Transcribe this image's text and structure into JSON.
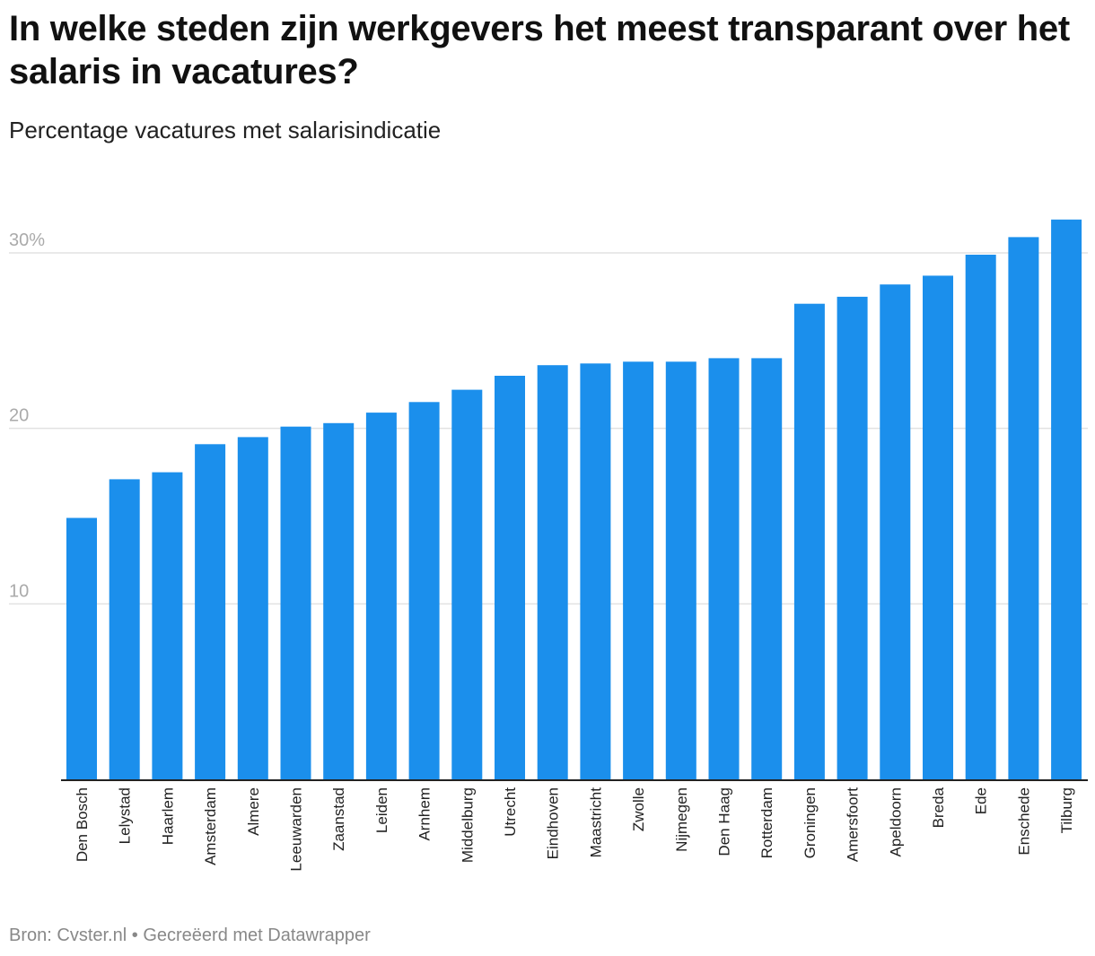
{
  "header": {
    "title": "In welke steden zijn werkgevers het meest transparant over het salaris in vacatures?",
    "subtitle": "Percentage vacatures met salarisindicatie"
  },
  "footer": {
    "source_label": "Bron:",
    "source_name": "Cvster.nl",
    "separator": "•",
    "credit": "Gecreëerd met Datawrapper"
  },
  "colors": {
    "bar": "#1b8fec",
    "gridline": "#e2e2e2",
    "baseline": "#222222"
  },
  "chart_data": {
    "type": "bar",
    "title": "In welke steden zijn werkgevers het meest transparant over het salaris in vacatures?",
    "subtitle": "Percentage vacatures met salarisindicatie",
    "xlabel": "",
    "ylabel": "",
    "ylim": [
      0,
      30
    ],
    "yticks": [
      {
        "value": 10,
        "label": "10"
      },
      {
        "value": 20,
        "label": "20"
      },
      {
        "value": 30,
        "label": "30%"
      }
    ],
    "grid": true,
    "categories": [
      "Den Bosch",
      "Lelystad",
      "Haarlem",
      "Amsterdam",
      "Almere",
      "Leeuwarden",
      "Zaanstad",
      "Leiden",
      "Arnhem",
      "Middelburg",
      "Utrecht",
      "Eindhoven",
      "Maastricht",
      "Zwolle",
      "Nijmegen",
      "Den Haag",
      "Rotterdam",
      "Groningen",
      "Amersfoort",
      "Apeldoorn",
      "Breda",
      "Ede",
      "Enschede",
      "Tilburg"
    ],
    "values": [
      14.9,
      17.1,
      17.5,
      19.1,
      19.5,
      20.1,
      20.3,
      20.9,
      21.5,
      22.2,
      23.0,
      23.6,
      23.7,
      23.8,
      23.8,
      24.0,
      24.0,
      27.1,
      27.5,
      28.2,
      28.7,
      29.9,
      30.9,
      31.9
    ]
  }
}
